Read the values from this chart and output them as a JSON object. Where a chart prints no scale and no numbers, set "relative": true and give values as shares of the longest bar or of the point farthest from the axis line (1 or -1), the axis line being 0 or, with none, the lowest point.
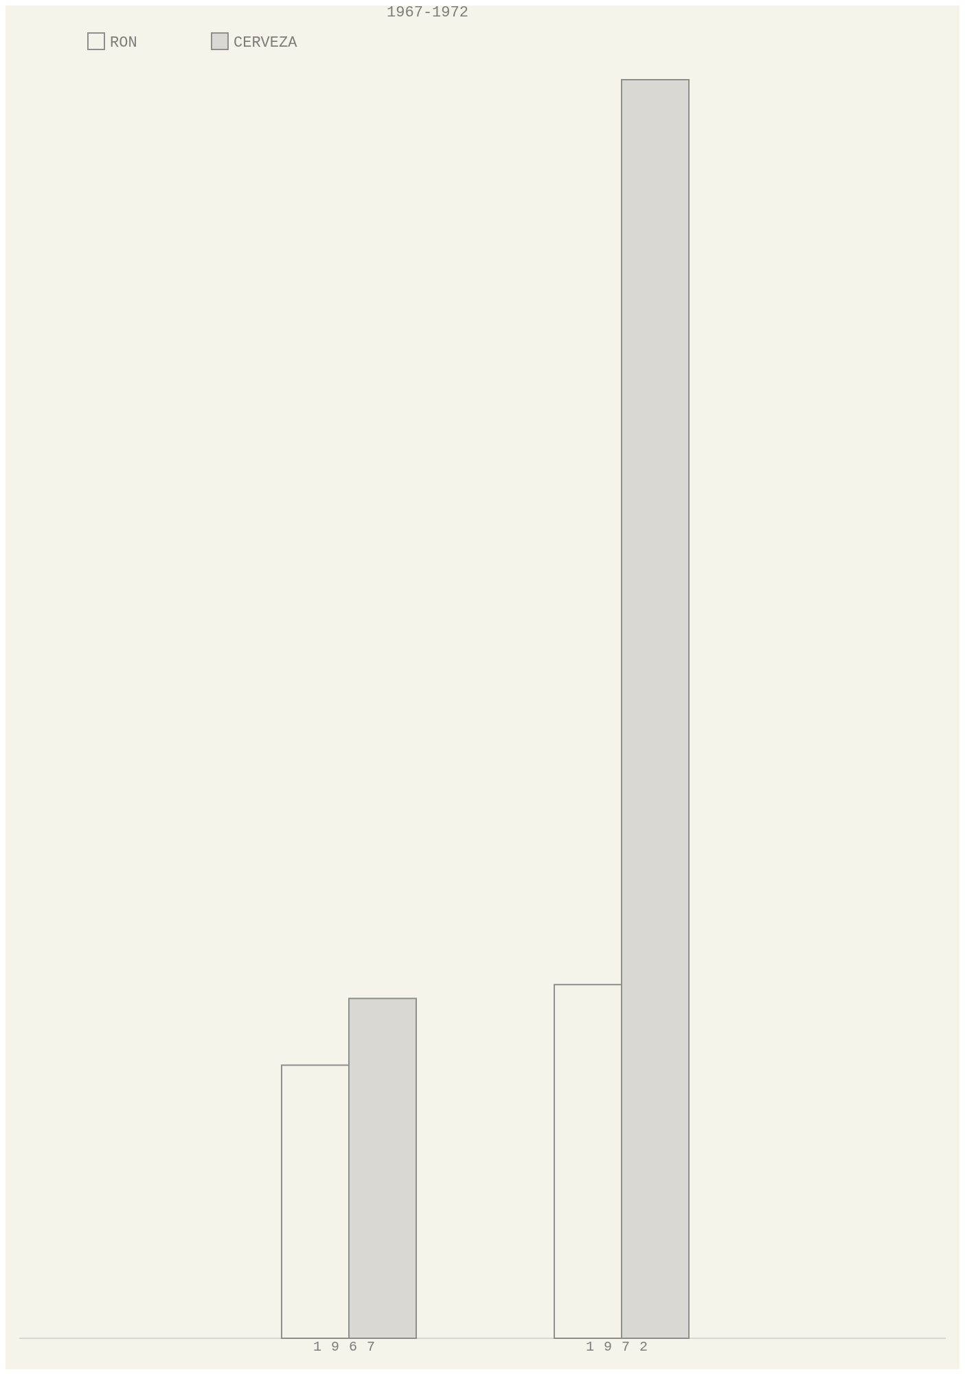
{
  "chart_data": {
    "type": "bar",
    "title": "1967-1972",
    "categories": [
      "1967",
      "1972"
    ],
    "relative": true,
    "legend": "top left",
    "series": [
      {
        "name": "RON",
        "color": "#f4f2e9",
        "values": [
          0.217,
          0.281
        ]
      },
      {
        "name": "CERVEZA",
        "color": "#d9d8d2",
        "values": [
          0.27,
          1
        ]
      }
    ]
  }
}
